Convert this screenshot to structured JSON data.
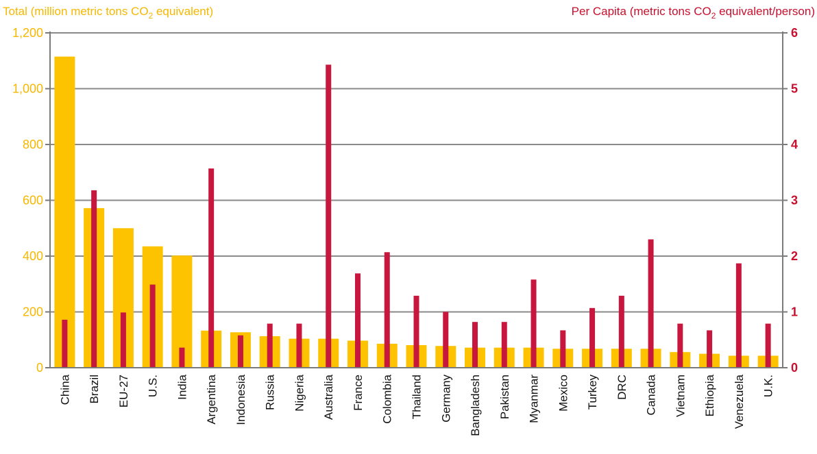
{
  "chart_data": {
    "type": "bar",
    "categories": [
      "China",
      "Brazil",
      "EU-27",
      "U.S.",
      "India",
      "Argentina",
      "Indonesia",
      "Russia",
      "Nigeria",
      "Australia",
      "France",
      "Colombia",
      "Thailand",
      "Germany",
      "Bangladesh",
      "Pakistan",
      "Myanmar",
      "Mexico",
      "Turkey",
      "DRC",
      "Canada",
      "Vietnam",
      "Ethiopia",
      "Venezuela",
      "U.K."
    ],
    "left_axis": {
      "label_prefix": "Total (million metric tons CO",
      "label_sub": "2",
      "label_suffix": " equivalent)",
      "ylim": [
        0,
        1200
      ],
      "ticks": [
        0,
        200,
        400,
        600,
        800,
        1000,
        1200
      ],
      "tick_labels": [
        "0",
        "200",
        "400",
        "600",
        "800",
        "1,000",
        "1,200"
      ],
      "color": "#f5b800"
    },
    "right_axis": {
      "label_prefix": "Per Capita (metric tons CO",
      "label_sub": "2",
      "label_suffix": " equivalent/person)",
      "ylim": [
        0,
        6
      ],
      "ticks": [
        0,
        1,
        2,
        3,
        4,
        5,
        6
      ],
      "tick_labels": [
        "0",
        "1",
        "2",
        "3",
        "4",
        "5",
        "6"
      ],
      "color": "#c8102e"
    },
    "series": [
      {
        "axis": "left",
        "color": "#fdc300",
        "values": [
          1115,
          572,
          500,
          435,
          402,
          133,
          127,
          113,
          104,
          104,
          97,
          86,
          81,
          78,
          72,
          72,
          72,
          68,
          68,
          68,
          68,
          56,
          50,
          43,
          43
        ]
      },
      {
        "axis": "right",
        "color": "#c8173e",
        "values": [
          0.86,
          3.18,
          0.99,
          1.49,
          0.36,
          3.57,
          0.58,
          0.79,
          0.79,
          5.43,
          1.69,
          2.07,
          1.29,
          1.0,
          0.82,
          0.82,
          1.58,
          0.67,
          1.07,
          1.29,
          2.3,
          0.79,
          0.67,
          1.87,
          0.79
        ]
      }
    ],
    "grid": true
  }
}
